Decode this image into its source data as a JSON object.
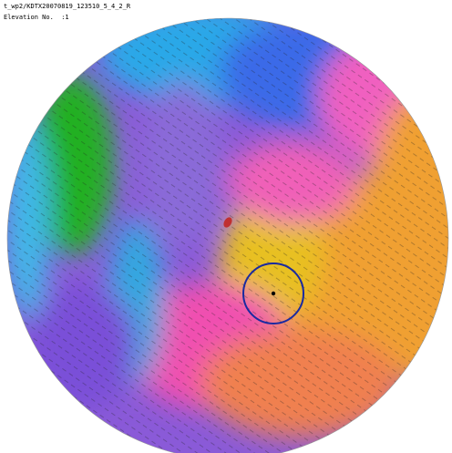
{
  "header": {
    "title": "t_wp2/KDTX20070819_123510_5_4_2_R",
    "elevation": "Elevation No.  :1"
  }
}
